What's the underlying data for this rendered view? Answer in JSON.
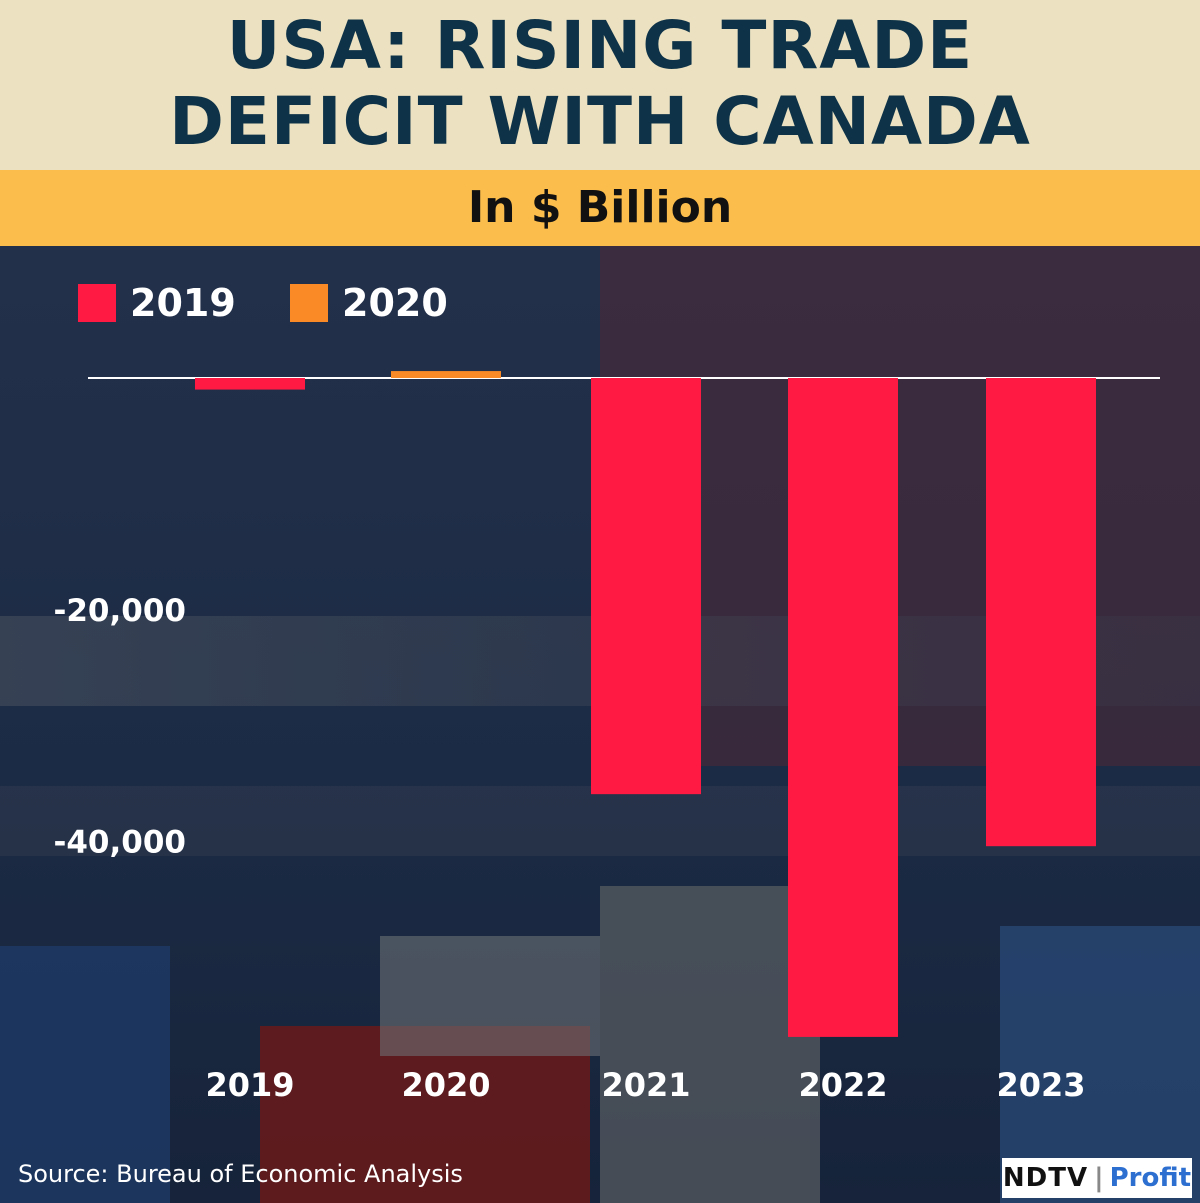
{
  "header": {
    "title_line1": "USA: RISING TRADE",
    "title_line2": "DEFICIT WITH CANADA",
    "subtitle": "In $ Billion"
  },
  "footer": {
    "source": "Source: Bureau of Economic Analysis",
    "logo_left": "NDTV",
    "logo_sep": "|",
    "logo_right": "Profit"
  },
  "colors": {
    "title": "#0e3348",
    "title_band": "#ece1c0",
    "subtitle_band": "#fbbd4c",
    "series_2019": "#ff1a44",
    "series_2020": "#f98a26"
  },
  "chart_data": {
    "type": "bar",
    "categories": [
      "2019",
      "2020",
      "2021",
      "2022",
      "2023"
    ],
    "values": [
      -1000,
      600,
      -36000,
      -57000,
      -40500
    ],
    "bar_colors": [
      "#ff1a44",
      "#f98a26",
      "#ff1a44",
      "#ff1a44",
      "#ff1a44"
    ],
    "legend": [
      {
        "name": "2019",
        "color": "#ff1a44"
      },
      {
        "name": "2020",
        "color": "#f98a26"
      }
    ],
    "legend_position": "top-left",
    "y_ticks": [
      -20000,
      -40000
    ],
    "y_tick_labels": [
      "-20,000",
      "-40,000"
    ],
    "ylim": [
      -60000,
      0
    ],
    "grid": false
  }
}
